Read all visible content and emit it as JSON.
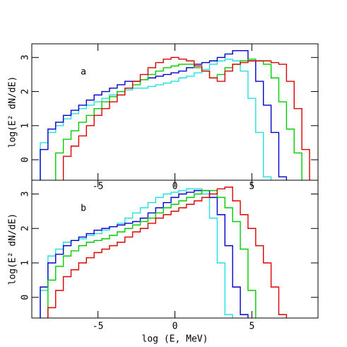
{
  "chart_data": [
    {
      "type": "line",
      "label": "a",
      "ylabel": "log(E² dN/dE)",
      "x": [
        -8.5,
        -8,
        -7.5,
        -7,
        -6.5,
        -6,
        -5.5,
        -5,
        -4.5,
        -4,
        -3.5,
        -3,
        -2.5,
        -2,
        -1.5,
        -1,
        -0.5,
        0,
        0.5,
        1,
        1.5,
        2,
        2.5,
        3,
        3.5,
        4,
        4.5,
        5,
        5.5,
        6,
        6.5,
        7,
        7.5,
        8,
        8.5
      ],
      "xlim": [
        -9.3,
        9.3
      ],
      "ylim": [
        -0.6,
        3.4
      ],
      "xticks": [
        -5,
        0,
        5
      ],
      "yticks": [
        0,
        1,
        2,
        3
      ],
      "series": [
        {
          "color": "#22e0e0",
          "values": [
            0.5,
            0.8,
            1.0,
            1.2,
            1.35,
            1.5,
            1.6,
            1.7,
            1.8,
            1.9,
            2.0,
            2.05,
            2.1,
            2.1,
            2.15,
            2.2,
            2.25,
            2.3,
            2.4,
            2.45,
            2.55,
            2.65,
            2.8,
            2.9,
            2.95,
            2.9,
            2.6,
            1.8,
            0.8,
            -0.5,
            null,
            null,
            null,
            null,
            null
          ]
        },
        {
          "color": "#0000cc",
          "values": [
            0.3,
            0.9,
            1.1,
            1.3,
            1.45,
            1.6,
            1.75,
            1.9,
            2.0,
            2.1,
            2.2,
            2.3,
            2.3,
            2.35,
            2.4,
            2.45,
            2.5,
            2.55,
            2.6,
            2.7,
            2.8,
            2.85,
            2.9,
            3.0,
            3.1,
            3.2,
            3.2,
            2.9,
            2.3,
            1.6,
            0.8,
            -0.5,
            null,
            null,
            null
          ]
        },
        {
          "color": "#00cc00",
          "values": [
            null,
            null,
            0.2,
            0.6,
            0.85,
            1.1,
            1.3,
            1.5,
            1.7,
            1.85,
            2.0,
            2.1,
            2.2,
            2.35,
            2.5,
            2.6,
            2.7,
            2.75,
            2.8,
            2.8,
            2.7,
            2.6,
            2.4,
            2.5,
            2.7,
            2.8,
            2.9,
            2.95,
            2.9,
            2.8,
            2.4,
            1.7,
            0.9,
            0.2,
            null
          ]
        },
        {
          "color": "#dd0000",
          "values": [
            null,
            null,
            null,
            0.1,
            0.4,
            0.7,
            1.0,
            1.3,
            1.5,
            1.7,
            1.9,
            2.1,
            2.3,
            2.5,
            2.7,
            2.85,
            2.95,
            3.0,
            2.95,
            2.9,
            2.75,
            2.6,
            2.4,
            2.3,
            2.6,
            2.8,
            2.85,
            2.9,
            2.9,
            2.9,
            2.85,
            2.8,
            2.3,
            1.5,
            0.3
          ]
        }
      ]
    },
    {
      "type": "line",
      "label": "b",
      "ylabel": "log(E² dN/dE)",
      "xlabel": "log (E, MeV)",
      "x": [
        -8.5,
        -8,
        -7.5,
        -7,
        -6.5,
        -6,
        -5.5,
        -5,
        -4.5,
        -4,
        -3.5,
        -3,
        -2.5,
        -2,
        -1.5,
        -1,
        -0.5,
        0,
        0.5,
        1,
        1.5,
        2,
        2.5,
        3,
        3.5,
        4,
        4.5,
        5,
        5.5,
        6,
        6.5,
        7,
        7.5,
        8,
        8.5
      ],
      "xlim": [
        -9.3,
        9.3
      ],
      "ylim": [
        -0.6,
        3.4
      ],
      "xticks": [
        -5,
        0,
        5
      ],
      "yticks": [
        0,
        1,
        2,
        3
      ],
      "series": [
        {
          "color": "#22e0e0",
          "values": [
            0.2,
            1.2,
            1.4,
            1.6,
            1.65,
            1.7,
            1.8,
            1.85,
            1.95,
            2.05,
            2.15,
            2.3,
            2.45,
            2.6,
            2.75,
            2.9,
            3.0,
            3.05,
            3.1,
            3.15,
            3.15,
            3.0,
            2.3,
            1.0,
            -0.5,
            null,
            null,
            null,
            null,
            null,
            null,
            null,
            null,
            null,
            null
          ]
        },
        {
          "color": "#0000cc",
          "values": [
            0.3,
            1.0,
            1.25,
            1.5,
            1.65,
            1.75,
            1.85,
            1.95,
            2.0,
            2.05,
            2.1,
            2.15,
            2.2,
            2.3,
            2.45,
            2.6,
            2.75,
            2.9,
            3.0,
            3.05,
            3.1,
            3.1,
            2.9,
            2.4,
            1.5,
            0.3,
            -0.5,
            null,
            null,
            null,
            null,
            null,
            null,
            null,
            null
          ]
        },
        {
          "color": "#00cc00",
          "values": [
            null,
            0.5,
            0.9,
            1.2,
            1.35,
            1.5,
            1.6,
            1.65,
            1.7,
            1.8,
            1.9,
            2.0,
            2.1,
            2.2,
            2.3,
            2.45,
            2.6,
            2.7,
            2.8,
            2.9,
            3.0,
            3.1,
            3.1,
            2.9,
            2.6,
            2.2,
            1.4,
            0.2,
            null,
            null,
            null,
            null,
            null,
            null,
            null
          ]
        },
        {
          "color": "#dd0000",
          "values": [
            null,
            -0.3,
            0.2,
            0.6,
            0.8,
            1.0,
            1.15,
            1.3,
            1.4,
            1.5,
            1.6,
            1.75,
            1.9,
            2.0,
            2.15,
            2.3,
            2.4,
            2.5,
            2.6,
            2.7,
            2.8,
            2.9,
            3.0,
            3.15,
            3.2,
            2.8,
            2.4,
            2.0,
            1.5,
            1.0,
            0.3,
            -0.5,
            null,
            null,
            null
          ]
        }
      ]
    }
  ]
}
